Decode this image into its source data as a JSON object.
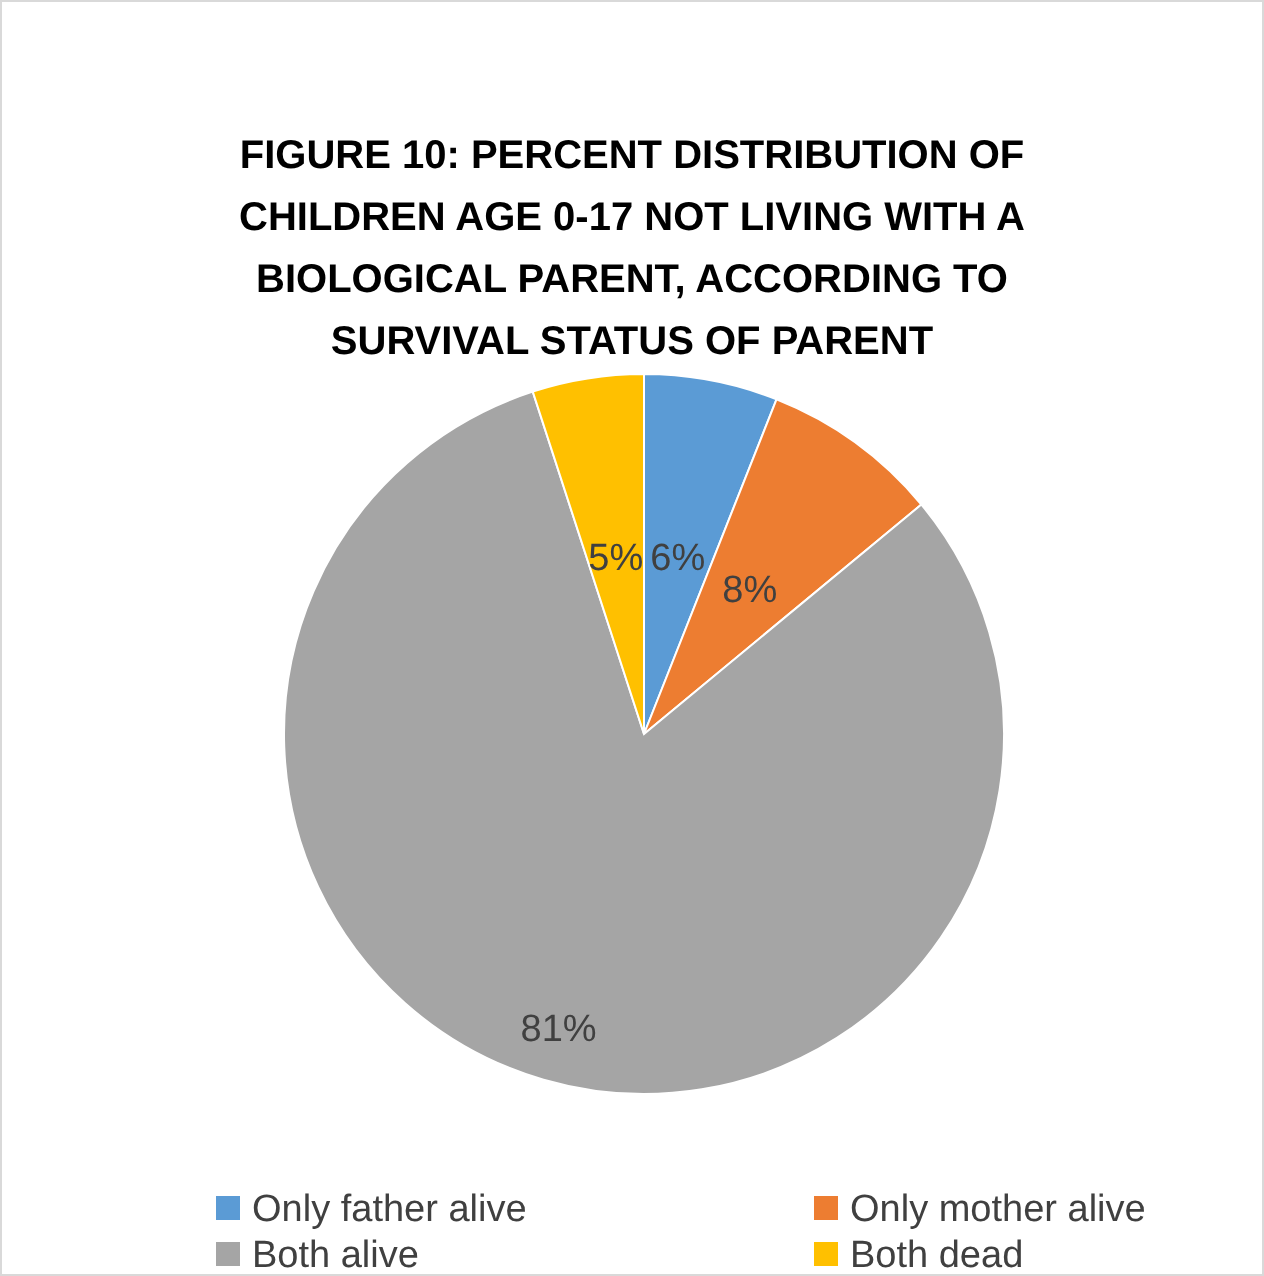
{
  "chart_data": {
    "type": "pie",
    "title": "FIGURE 10: PERCENT DISTRIBUTION OF CHILDREN AGE 0-17 NOT LIVING WITH A BIOLOGICAL PARENT, ACCORDING TO SURVIVAL STATUS OF PARENT",
    "categories": [
      "Only father alive",
      "Only mother alive",
      "Both alive",
      "Both dead"
    ],
    "values": [
      6,
      8,
      81,
      5
    ],
    "colors": [
      "#5b9bd5",
      "#ed7d31",
      "#a5a5a5",
      "#ffc000"
    ],
    "value_labels": [
      "6%",
      "8%",
      "81%",
      "5%"
    ],
    "legend": "bottom"
  }
}
